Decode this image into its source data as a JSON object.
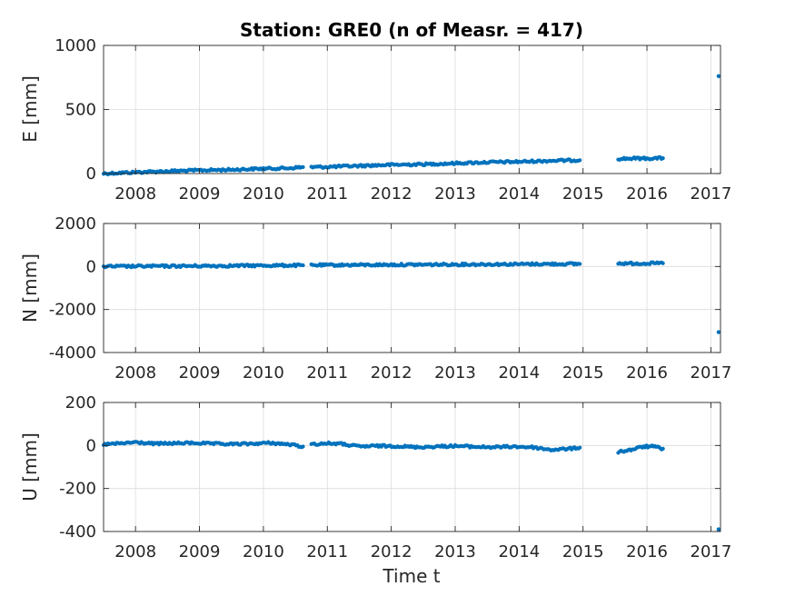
{
  "chart_data": {
    "type": "scatter",
    "title": "Station: GRE0 (n of Measr. = 417)",
    "xlabel": "Time t",
    "x_ticks": [
      2008,
      2009,
      2010,
      2011,
      2012,
      2013,
      2014,
      2015,
      2016,
      2017
    ],
    "xlim": [
      2007.5,
      2017.15
    ],
    "grid": true,
    "marker_color": "#0072BD",
    "panels": [
      {
        "ylabel": "E [mm]",
        "ylim": [
          0,
          1000
        ],
        "y_ticks": [
          0,
          500,
          1000
        ],
        "segments": [
          {
            "x": [
              2007.5,
              2008.0,
              2008.5,
              2009.0,
              2009.5,
              2010.0,
              2010.4,
              2010.62
            ],
            "y": [
              0,
              10,
              18,
              25,
              30,
              38,
              42,
              50
            ]
          },
          {
            "x": [
              2010.75,
              2011.0,
              2011.5,
              2012.0,
              2012.5,
              2013.0,
              2013.5,
              2014.0,
              2014.5,
              2014.95
            ],
            "y": [
              50,
              52,
              60,
              68,
              72,
              80,
              88,
              92,
              100,
              104
            ]
          },
          {
            "x": [
              2015.55,
              2015.8,
              2016.0,
              2016.25
            ],
            "y": [
              115,
              118,
              118,
              120
            ]
          }
        ],
        "outliers": [
          {
            "x": 2017.12,
            "y": 760
          }
        ]
      },
      {
        "ylabel": "N [mm]",
        "ylim": [
          -4000,
          2000
        ],
        "y_ticks": [
          -4000,
          -2000,
          0,
          2000
        ],
        "segments": [
          {
            "x": [
              2007.5,
              2008.0,
              2009.0,
              2010.0,
              2010.62
            ],
            "y": [
              0,
              10,
              25,
              45,
              55
            ]
          },
          {
            "x": [
              2010.75,
              2011.0,
              2012.0,
              2013.0,
              2014.0,
              2014.95
            ],
            "y": [
              60,
              65,
              80,
              95,
              110,
              120
            ]
          },
          {
            "x": [
              2015.55,
              2016.0,
              2016.25
            ],
            "y": [
              140,
              145,
              150
            ]
          }
        ],
        "outliers": [
          {
            "x": 2017.12,
            "y": -3050
          }
        ]
      },
      {
        "ylabel": "U [mm]",
        "ylim": [
          -400,
          200
        ],
        "y_ticks": [
          -400,
          -200,
          0,
          200
        ],
        "segments": [
          {
            "x": [
              2007.5,
              2007.8,
              2008.0,
              2008.3,
              2008.6,
              2008.9,
              2009.2,
              2009.5,
              2009.8,
              2010.1,
              2010.4,
              2010.62
            ],
            "y": [
              5,
              10,
              15,
              8,
              10,
              12,
              8,
              6,
              8,
              12,
              5,
              -5
            ]
          },
          {
            "x": [
              2010.75,
              2011.0,
              2011.2,
              2011.5,
              2011.8,
              2012.1,
              2012.4,
              2012.7,
              2013.0,
              2013.3,
              2013.6,
              2013.9,
              2014.2,
              2014.5,
              2014.8,
              2014.95
            ],
            "y": [
              5,
              10,
              8,
              -5,
              -2,
              -3,
              -8,
              -5,
              -2,
              -6,
              -8,
              -5,
              -8,
              -20,
              -15,
              -10
            ]
          },
          {
            "x": [
              2015.55,
              2015.75,
              2015.95,
              2016.1,
              2016.25
            ],
            "y": [
              -30,
              -20,
              -5,
              -5,
              -15
            ]
          }
        ],
        "outliers": [
          {
            "x": 2017.12,
            "y": -390
          }
        ]
      }
    ]
  }
}
